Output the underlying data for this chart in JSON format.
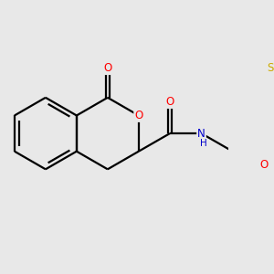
{
  "background_color": "#e8e8e8",
  "atom_colors": {
    "O": "#ff0000",
    "N": "#0000cc",
    "S": "#ccaa00"
  },
  "bond_color": "#000000",
  "bond_width": 1.6,
  "figsize": [
    3.0,
    3.0
  ],
  "dpi": 100,
  "xlim": [
    -2.8,
    3.5
  ],
  "ylim": [
    -2.2,
    2.2
  ]
}
